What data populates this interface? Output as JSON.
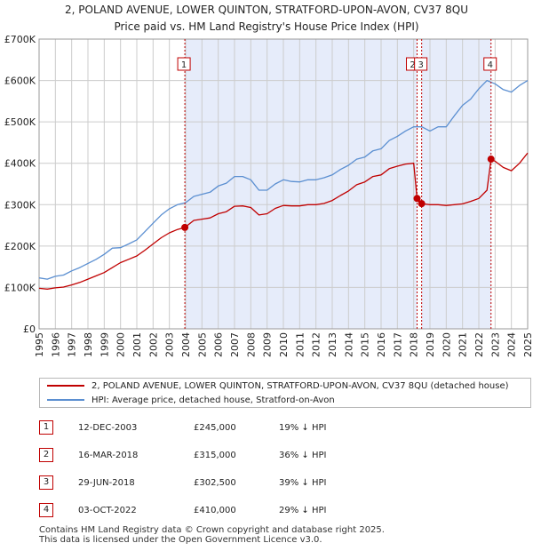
{
  "title": {
    "line1": "2, POLAND AVENUE, LOWER QUINTON, STRATFORD-UPON-AVON, CV37 8QU",
    "line2": "Price paid vs. HM Land Registry's House Price Index (HPI)"
  },
  "legend": {
    "property_label": "2, POLAND AVENUE, LOWER QUINTON, STRATFORD-UPON-AVON, CV37 8QU (detached house)",
    "hpi_label": "HPI: Average price, detached house, Stratford-on-Avon"
  },
  "colors": {
    "property": "#c00000",
    "hpi": "#5b8fd1",
    "shade": "#e6ecfa",
    "grid": "#cccccc"
  },
  "sales": [
    {
      "num": "1",
      "date": "12-DEC-2003",
      "price": "£245,000",
      "hpi_diff": "19% ↓ HPI"
    },
    {
      "num": "2",
      "date": "16-MAR-2018",
      "price": "£315,000",
      "hpi_diff": "36% ↓ HPI"
    },
    {
      "num": "3",
      "date": "29-JUN-2018",
      "price": "£302,500",
      "hpi_diff": "39% ↓ HPI"
    },
    {
      "num": "4",
      "date": "03-OCT-2022",
      "price": "£410,000",
      "hpi_diff": "29% ↓ HPI"
    }
  ],
  "footer": {
    "line1": "Contains HM Land Registry data © Crown copyright and database right 2025.",
    "line2": "This data is licensed under the Open Government Licence v3.0."
  },
  "chart_data": {
    "type": "line",
    "xlim": [
      1995,
      2025
    ],
    "ylim": [
      0,
      700000
    ],
    "y_ticks": [
      0,
      100000,
      200000,
      300000,
      400000,
      500000,
      600000,
      700000
    ],
    "y_tick_labels": [
      "£0",
      "£100K",
      "£200K",
      "£300K",
      "£400K",
      "£500K",
      "£600K",
      "£700K"
    ],
    "x_ticks": [
      1995,
      1996,
      1997,
      1998,
      1999,
      2000,
      2001,
      2002,
      2003,
      2004,
      2005,
      2006,
      2007,
      2008,
      2009,
      2010,
      2011,
      2012,
      2013,
      2014,
      2015,
      2016,
      2017,
      2018,
      2019,
      2020,
      2021,
      2022,
      2023,
      2024,
      2025
    ],
    "shaded_ranges": [
      [
        2003.95,
        2018.21
      ],
      [
        2018.49,
        2022.75
      ]
    ],
    "sale_markers": [
      {
        "label": "1",
        "x": 2003.95,
        "y": 245000
      },
      {
        "label": "2",
        "x": 2018.21,
        "y": 315000
      },
      {
        "label": "3",
        "x": 2018.49,
        "y": 302500
      },
      {
        "label": "4",
        "x": 2022.75,
        "y": 410000
      }
    ],
    "series": [
      {
        "name": "HPI: Average price, detached house, Stratford-on-Avon",
        "x": [
          1995,
          1995.5,
          1996,
          1996.5,
          1997,
          1997.5,
          1998,
          1998.5,
          1999,
          1999.5,
          2000,
          2000.5,
          2001,
          2001.5,
          2002,
          2002.5,
          2003,
          2003.5,
          2004,
          2004.5,
          2005,
          2005.5,
          2006,
          2006.5,
          2007,
          2007.5,
          2008,
          2008.5,
          2009,
          2009.5,
          2010,
          2010.5,
          2011,
          2011.5,
          2012,
          2012.5,
          2013,
          2013.5,
          2014,
          2014.5,
          2015,
          2015.5,
          2016,
          2016.5,
          2017,
          2017.5,
          2018,
          2018.5,
          2019,
          2019.5,
          2020,
          2020.5,
          2021,
          2021.5,
          2022,
          2022.5,
          2023,
          2023.5,
          2024,
          2024.5,
          2025
        ],
        "values": [
          123000,
          120000,
          127000,
          130000,
          140000,
          148000,
          158000,
          168000,
          180000,
          195000,
          196000,
          205000,
          215000,
          235000,
          255000,
          275000,
          290000,
          300000,
          305000,
          320000,
          325000,
          330000,
          345000,
          352000,
          368000,
          368000,
          360000,
          335000,
          335000,
          350000,
          360000,
          356000,
          355000,
          360000,
          360000,
          365000,
          372000,
          385000,
          395000,
          410000,
          415000,
          430000,
          435000,
          455000,
          465000,
          478000,
          488000,
          488000,
          478000,
          488000,
          488000,
          515000,
          540000,
          555000,
          580000,
          600000,
          592000,
          578000,
          572000,
          588000,
          600000
        ]
      },
      {
        "name": "2, POLAND AVENUE, LOWER QUINTON, STRATFORD-UPON-AVON, CV37 8QU (detached house)",
        "x": [
          1995,
          1995.5,
          1996,
          1996.5,
          1997,
          1997.5,
          1998,
          1998.5,
          1999,
          1999.5,
          2000,
          2000.5,
          2001,
          2001.5,
          2002,
          2002.5,
          2003,
          2003.5,
          2003.95,
          2004.5,
          2005,
          2005.5,
          2006,
          2006.5,
          2007,
          2007.5,
          2008,
          2008.5,
          2009,
          2009.5,
          2010,
          2010.5,
          2011,
          2011.5,
          2012,
          2012.5,
          2013,
          2013.5,
          2014,
          2014.5,
          2015,
          2015.5,
          2016,
          2016.5,
          2017,
          2017.5,
          2018.0,
          2018.21,
          2018.35,
          2018.49,
          2019,
          2019.5,
          2020,
          2020.5,
          2021,
          2021.5,
          2022,
          2022.5,
          2022.75,
          2023,
          2023.5,
          2024,
          2024.5,
          2025
        ],
        "values": [
          98000,
          96000,
          99000,
          101000,
          106000,
          112000,
          120000,
          128000,
          136000,
          148000,
          160000,
          168000,
          176000,
          190000,
          205000,
          220000,
          232000,
          240000,
          245000,
          262000,
          265000,
          268000,
          278000,
          283000,
          296000,
          297000,
          293000,
          275000,
          278000,
          291000,
          298000,
          297000,
          297000,
          300000,
          300000,
          303000,
          310000,
          322000,
          333000,
          348000,
          355000,
          368000,
          372000,
          387000,
          393000,
          398000,
          400000,
          315000,
          305000,
          302500,
          300000,
          300000,
          298000,
          300000,
          302000,
          308000,
          315000,
          335000,
          410000,
          405000,
          390000,
          382000,
          400000,
          425000
        ]
      }
    ]
  }
}
